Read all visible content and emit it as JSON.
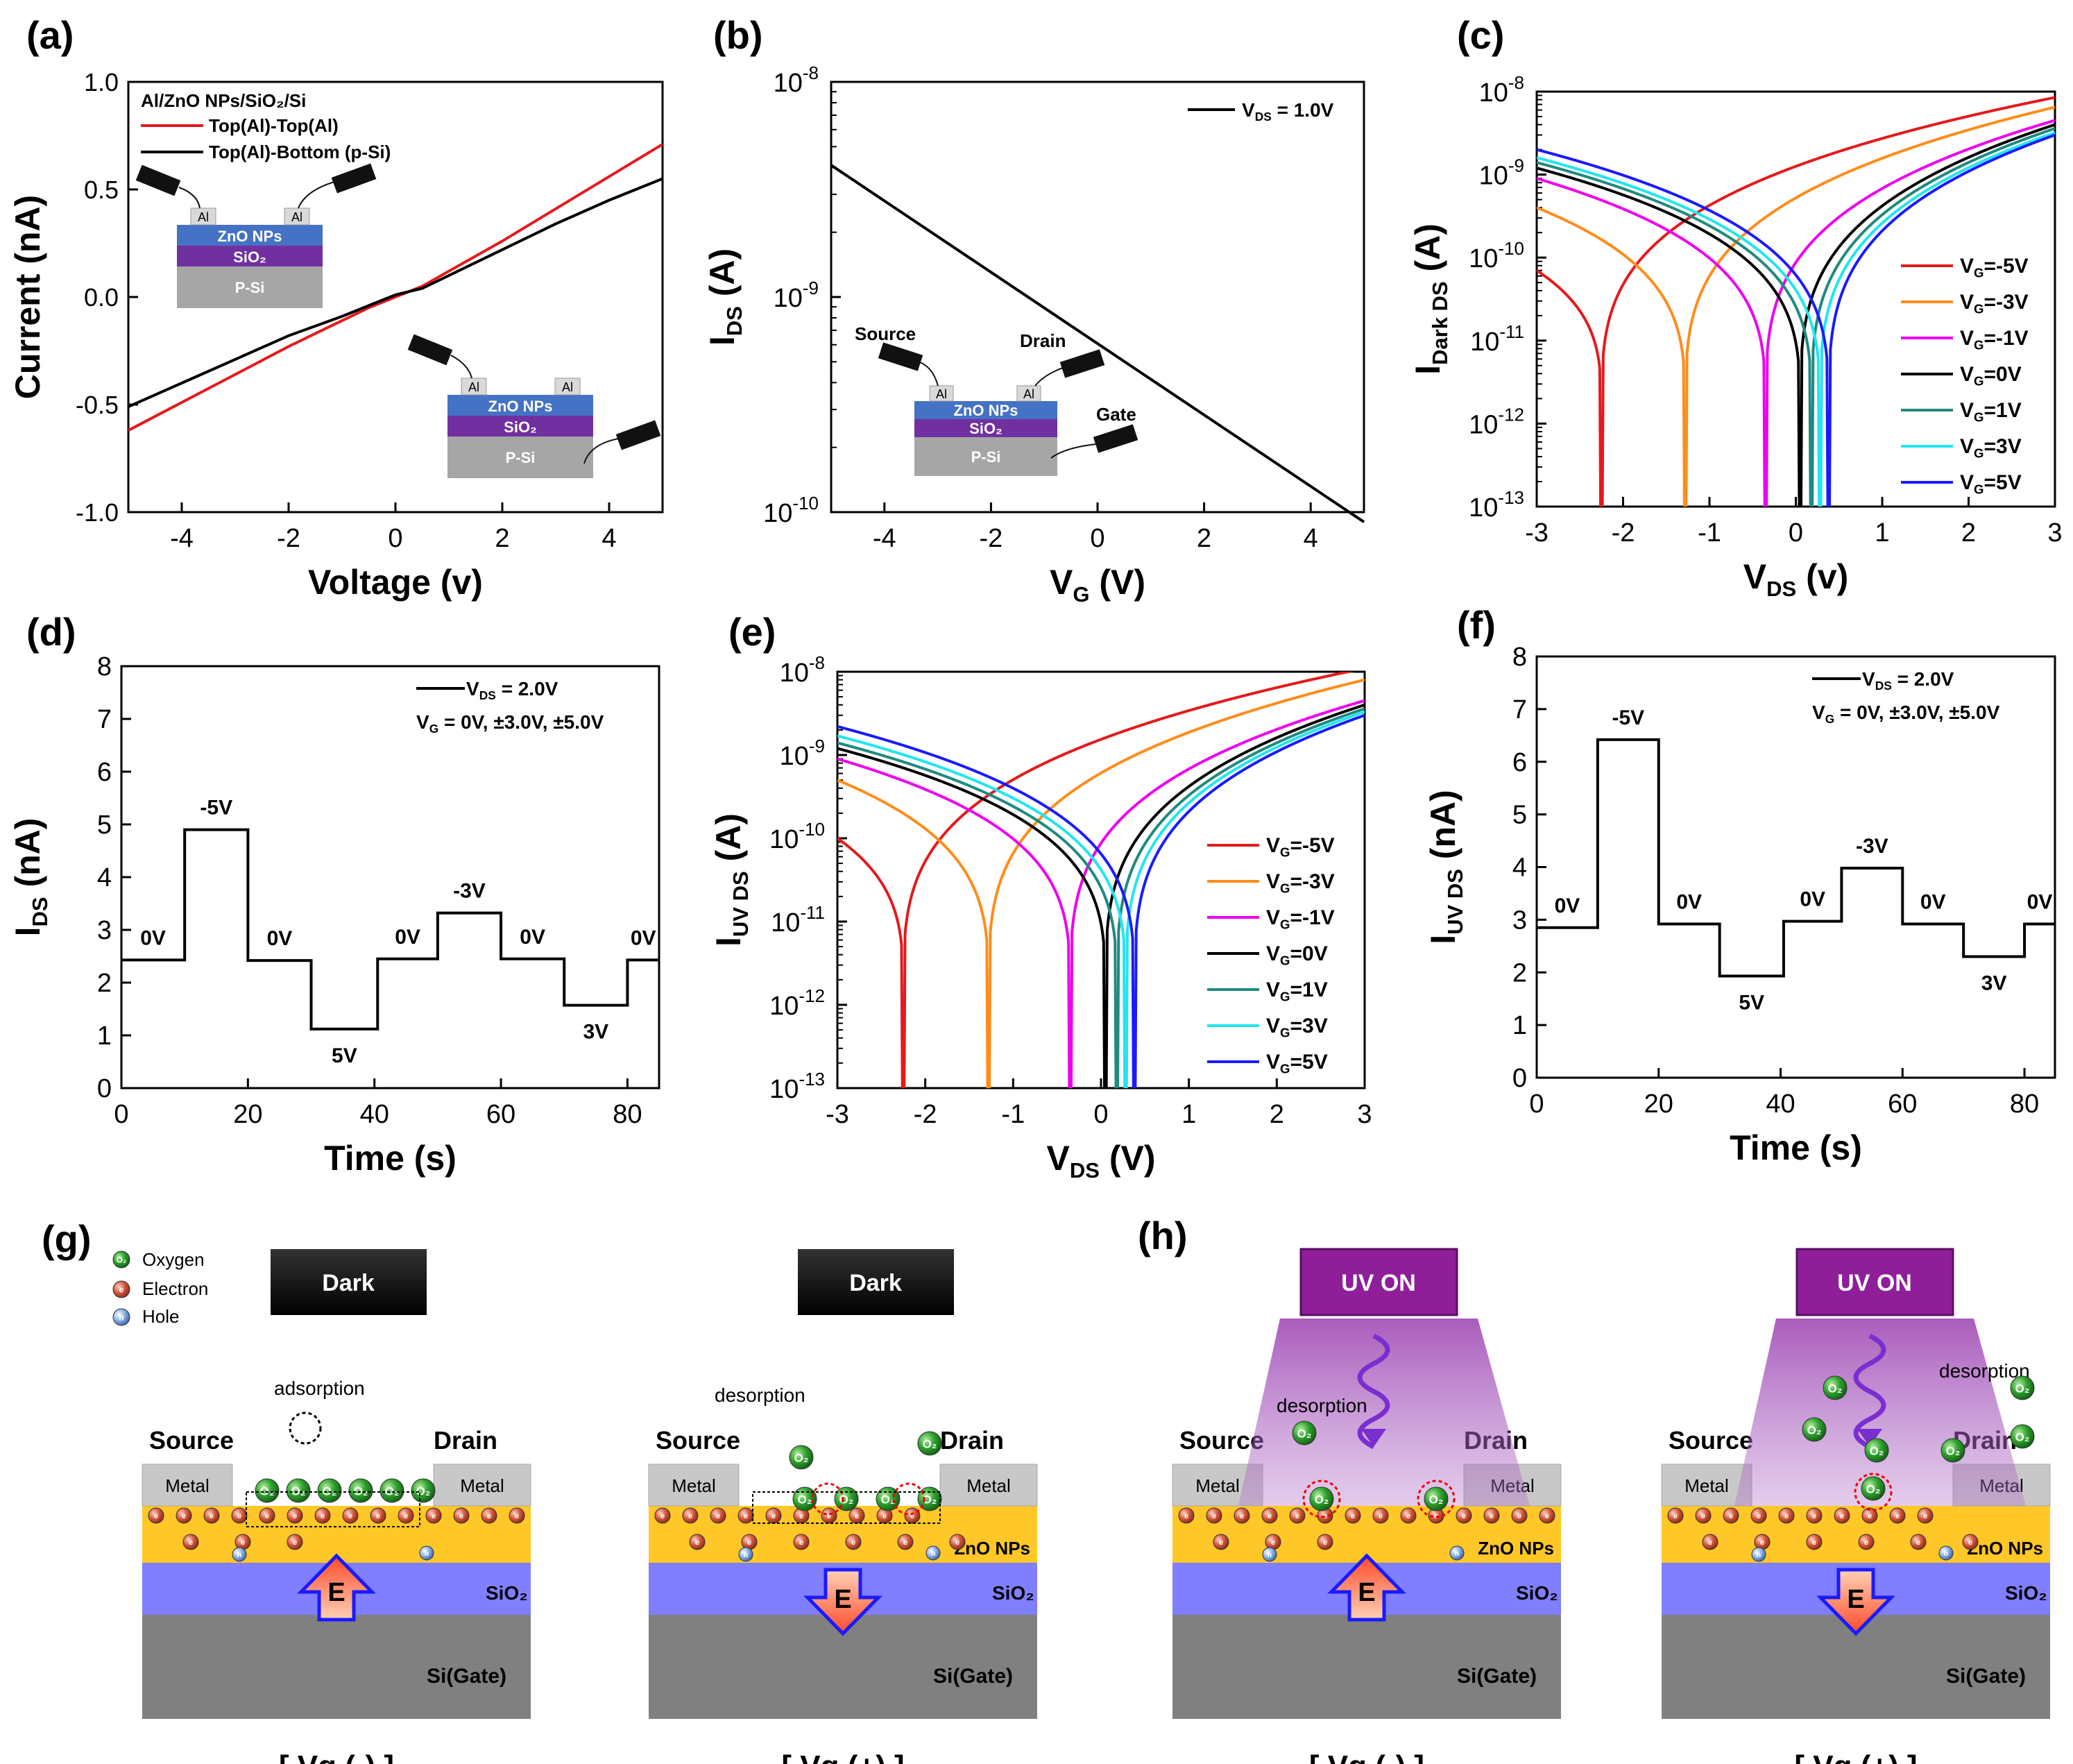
{
  "panels": {
    "a": "(a)",
    "b": "(b)",
    "c": "(c)",
    "d": "(d)",
    "e": "(e)",
    "f": "(f)",
    "g": "(g)",
    "h": "(h)"
  },
  "chart_data": [
    {
      "id": "a",
      "type": "line",
      "title": "",
      "xlabel": "Voltage (v)",
      "ylabel": "Current (nA)",
      "xlim": [
        -5,
        5
      ],
      "ylim": [
        -1.0,
        1.0
      ],
      "xticks": [
        -4,
        -2,
        0,
        2,
        4
      ],
      "xtick_labels": [
        "-4",
        "-2",
        "0",
        "2",
        "4"
      ],
      "yticks": [
        -1.0,
        -0.5,
        0.0,
        0.5,
        1.0
      ],
      "ytick_labels": [
        "-1.0",
        "-0.5",
        "0.0",
        "0.5",
        "1.0"
      ],
      "legend_title": "Al/ZnO NPs/SiO₂/Si",
      "series": [
        {
          "name": "Top(Al)-Top(Al)",
          "color": "#e41a1c",
          "x": [
            -5,
            -4,
            -3,
            -2,
            -1,
            -0.5,
            0,
            0.5,
            1,
            2,
            3,
            4,
            5
          ],
          "y": [
            -0.62,
            -0.49,
            -0.36,
            -0.23,
            -0.11,
            -0.05,
            0.0,
            0.05,
            0.12,
            0.26,
            0.41,
            0.56,
            0.71
          ]
        },
        {
          "name": "Top(Al)-Bottom (p-Si)",
          "color": "#000000",
          "x": [
            -5,
            -4,
            -3,
            -2,
            -1,
            -0.5,
            0,
            0.5,
            1,
            2,
            3,
            4,
            5
          ],
          "y": [
            -0.51,
            -0.4,
            -0.29,
            -0.18,
            -0.09,
            -0.04,
            0.01,
            0.04,
            0.1,
            0.22,
            0.34,
            0.45,
            0.55
          ]
        }
      ],
      "insets": {
        "source": "",
        "zno": "ZnO NPs",
        "sio2": "SiO₂",
        "psi": "P-Si",
        "al": "Al"
      }
    },
    {
      "id": "b",
      "type": "line",
      "yscale": "log",
      "xlabel": "V_G (V)",
      "ylabel": "I_DS (A)",
      "xlim": [
        -5,
        5
      ],
      "ylim": [
        1e-10,
        1e-08
      ],
      "xticks": [
        -4,
        -2,
        0,
        2,
        4
      ],
      "xtick_labels": [
        "-4",
        "-2",
        "0",
        "2",
        "4"
      ],
      "yticks": [
        1e-10,
        1e-09,
        1e-08
      ],
      "series": [
        {
          "name": "V_DS = 1.0V",
          "color": "#000000",
          "x": [
            -5,
            5
          ],
          "y": [
            4.1e-09,
            9e-11
          ]
        }
      ],
      "inset": {
        "source": "Source",
        "drain": "Drain",
        "gate": "Gate",
        "zno": "ZnO NPs",
        "sio2": "SiO₂",
        "psi": "P-Si",
        "al": "Al"
      }
    },
    {
      "id": "c",
      "type": "line",
      "yscale": "log",
      "xlabel": "V_DS (v)",
      "ylabel": "I_Dark DS (A)",
      "xlim": [
        -3,
        3
      ],
      "ylim": [
        1e-13,
        1e-08
      ],
      "xticks": [
        -3,
        -2,
        -1,
        0,
        1,
        2,
        3
      ],
      "xtick_labels": [
        "-3",
        "-2",
        "-1",
        "0",
        "1",
        "2",
        "3"
      ],
      "series": [
        {
          "name": "V_G=-5V",
          "color": "#e41a1c",
          "v0": -2.25,
          "left_at_-3": 7e-11,
          "right_at_3": 8.5e-09
        },
        {
          "name": "V_G=-3V",
          "color": "#ff8c1a",
          "v0": -1.28,
          "left_at_-3": 4e-10,
          "right_at_3": 6.5e-09
        },
        {
          "name": "V_G=-1V",
          "color": "#ee00ee",
          "v0": -0.35,
          "left_at_-3": 9e-10,
          "right_at_3": 4.5e-09
        },
        {
          "name": "V_G=0V",
          "color": "#000000",
          "v0": 0.05,
          "left_at_-3": 1.2e-09,
          "right_at_3": 4e-09
        },
        {
          "name": "V_G=1V",
          "color": "#1f8a80",
          "v0": 0.18,
          "left_at_-3": 1.4e-09,
          "right_at_3": 3.6e-09
        },
        {
          "name": "V_G=3V",
          "color": "#22e5f0",
          "v0": 0.28,
          "left_at_-3": 1.6e-09,
          "right_at_3": 3.2e-09
        },
        {
          "name": "V_G=5V",
          "color": "#1a1aff",
          "v0": 0.38,
          "left_at_-3": 2e-09,
          "right_at_3": 3e-09
        }
      ]
    },
    {
      "id": "d",
      "type": "line",
      "xlabel": "Time (s)",
      "ylabel": "I_DS (nA)",
      "xlim": [
        0,
        85
      ],
      "ylim": [
        0,
        8
      ],
      "xticks": [
        0,
        20,
        40,
        60,
        80
      ],
      "xtick_labels": [
        "0",
        "20",
        "40",
        "60",
        "80"
      ],
      "yticks": [
        0,
        1,
        2,
        3,
        4,
        5,
        6,
        7,
        8
      ],
      "ytick_labels": [
        "0",
        "1",
        "2",
        "3",
        "4",
        "5",
        "6",
        "7",
        "8"
      ],
      "legend": [
        "V_DS = 2.0V",
        "V_G = 0V, ±3.0V, ±5.0V"
      ],
      "steps": [
        {
          "t0": 0,
          "t1": 10,
          "v": 2.43,
          "label": "0V"
        },
        {
          "t0": 10,
          "t1": 20,
          "v": 4.9,
          "label": "-5V"
        },
        {
          "t0": 20,
          "t1": 30,
          "v": 2.42,
          "label": "0V"
        },
        {
          "t0": 30,
          "t1": 40.5,
          "v": 1.12,
          "label": "5V"
        },
        {
          "t0": 40.5,
          "t1": 50,
          "v": 2.45,
          "label": "0V"
        },
        {
          "t0": 50,
          "t1": 60,
          "v": 3.32,
          "label": "-3V"
        },
        {
          "t0": 60,
          "t1": 70,
          "v": 2.45,
          "label": "0V"
        },
        {
          "t0": 70,
          "t1": 80,
          "v": 1.57,
          "label": "3V"
        },
        {
          "t0": 80,
          "t1": 85,
          "v": 2.43,
          "label": "0V"
        }
      ]
    },
    {
      "id": "e",
      "type": "line",
      "yscale": "log",
      "xlabel": "V_DS (V)",
      "ylabel": "I_UV DS (A)",
      "xlim": [
        -3,
        3
      ],
      "ylim": [
        1e-13,
        1e-08
      ],
      "xticks": [
        -3,
        -2,
        -1,
        0,
        1,
        2,
        3
      ],
      "xtick_labels": [
        "-3",
        "-2",
        "-1",
        "0",
        "1",
        "2",
        "3"
      ],
      "series": [
        {
          "name": "V_G=-5V",
          "color": "#e41a1c",
          "v0": -2.25,
          "left_at_-3": 1e-10,
          "right_at_3": 1.1e-08
        },
        {
          "name": "V_G=-3V",
          "color": "#ff8c1a",
          "v0": -1.28,
          "left_at_-3": 5e-10,
          "right_at_3": 8e-09
        },
        {
          "name": "V_G=-1V",
          "color": "#ee00ee",
          "v0": -0.35,
          "left_at_-3": 9e-10,
          "right_at_3": 4.5e-09
        },
        {
          "name": "V_G=0V",
          "color": "#000000",
          "v0": 0.05,
          "left_at_-3": 1.2e-09,
          "right_at_3": 4e-09
        },
        {
          "name": "V_G=1V",
          "color": "#1f8a80",
          "v0": 0.18,
          "left_at_-3": 1.4e-09,
          "right_at_3": 3.6e-09
        },
        {
          "name": "V_G=3V",
          "color": "#22e5f0",
          "v0": 0.28,
          "left_at_-3": 1.7e-09,
          "right_at_3": 3.3e-09
        },
        {
          "name": "V_G=5V",
          "color": "#1a1aff",
          "v0": 0.38,
          "left_at_-3": 2.2e-09,
          "right_at_3": 3e-09
        }
      ]
    },
    {
      "id": "f",
      "type": "line",
      "xlabel": "Time (s)",
      "ylabel": "I_UV DS (nA)",
      "xlim": [
        0,
        85
      ],
      "ylim": [
        0,
        8
      ],
      "xticks": [
        0,
        20,
        40,
        60,
        80
      ],
      "xtick_labels": [
        "0",
        "20",
        "40",
        "60",
        "80"
      ],
      "yticks": [
        0,
        1,
        2,
        3,
        4,
        5,
        6,
        7,
        8
      ],
      "ytick_labels": [
        "0",
        "1",
        "2",
        "3",
        "4",
        "5",
        "6",
        "7",
        "8"
      ],
      "legend": [
        "V_DS = 2.0V",
        "V_G = 0V, ±3.0V, ±5.0V"
      ],
      "steps": [
        {
          "t0": 0,
          "t1": 10,
          "v": 2.85,
          "label": "0V"
        },
        {
          "t0": 10,
          "t1": 20,
          "v": 6.42,
          "label": "-5V"
        },
        {
          "t0": 20,
          "t1": 30,
          "v": 2.92,
          "label": "0V"
        },
        {
          "t0": 30,
          "t1": 40.5,
          "v": 1.93,
          "label": "5V"
        },
        {
          "t0": 40.5,
          "t1": 50,
          "v": 2.97,
          "label": "0V"
        },
        {
          "t0": 50,
          "t1": 60,
          "v": 3.98,
          "label": "-3V"
        },
        {
          "t0": 60,
          "t1": 70,
          "v": 2.92,
          "label": "0V"
        },
        {
          "t0": 70,
          "t1": 80,
          "v": 2.3,
          "label": "3V"
        },
        {
          "t0": 80,
          "t1": 85,
          "v": 2.92,
          "label": "0V"
        }
      ]
    }
  ],
  "schematics": {
    "legend": {
      "oxygen": "Oxygen",
      "electron": "Electron",
      "hole": "Hole"
    },
    "g1": {
      "box": "Dark",
      "process": "adsorption",
      "source": "Source",
      "drain": "Drain",
      "metal": "Metal",
      "sio2": "SiO₂",
      "si": "Si(Gate)",
      "field": "E",
      "caption": "[ Vg (-) ]"
    },
    "g2": {
      "box": "Dark",
      "process": "desorption",
      "source": "Source",
      "drain": "Drain",
      "metal": "Metal",
      "zno": "ZnO NPs",
      "sio2": "SiO₂",
      "si": "Si(Gate)",
      "field": "E",
      "caption": "[ Vg (+) ]"
    },
    "h1": {
      "box": "UV ON",
      "process": "desorption",
      "source": "Source",
      "drain": "Drain",
      "metal": "Metal",
      "zno": "ZnO NPs",
      "sio2": "SiO₂",
      "si": "Si(Gate)",
      "field": "E",
      "caption": "[ Vg (-) ]"
    },
    "h2": {
      "box": "UV ON",
      "process": "desorption",
      "source": "Source",
      "drain": "Drain",
      "metal": "Metal",
      "zno": "ZnO NPs",
      "sio2": "SiO₂",
      "si": "Si(Gate)",
      "field": "E",
      "caption": "[ Vg (+) ]"
    },
    "particles": {
      "o2": "O₂",
      "e": "e",
      "h": "h"
    }
  },
  "colors": {
    "zno": "#ffc727",
    "sio2": "#7f7fff",
    "si": "#808080",
    "metal": "#c8c8c8",
    "uv": "#8e1f98",
    "electron": "#c0392b",
    "oxygen": "#2e9e2e",
    "hole": "#5b8ed6"
  }
}
